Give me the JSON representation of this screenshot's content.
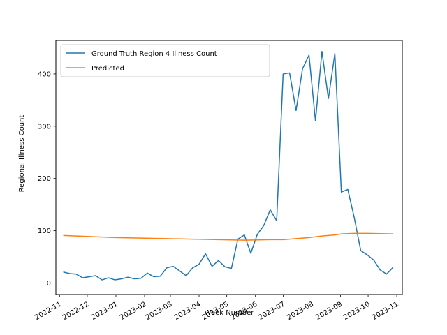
{
  "chart_data": {
    "type": "line",
    "title": "",
    "xlabel": "Week Number",
    "ylabel": "Regional Illness Count",
    "xaxis_type": "date",
    "xlim": [
      "2022-10-28",
      "2023-11-07"
    ],
    "ylim": [
      -22,
      464
    ],
    "x_ticks": [
      "2022-11-01",
      "2022-12-01",
      "2023-01-01",
      "2023-02-01",
      "2023-03-01",
      "2023-04-01",
      "2023-05-01",
      "2023-06-01",
      "2023-07-01",
      "2023-08-01",
      "2023-09-01",
      "2023-10-01",
      "2023-11-01"
    ],
    "x_tick_labels": [
      "2022-11",
      "2022-12",
      "2023-01",
      "2023-02",
      "2023-03",
      "2023-04",
      "2023-05",
      "2023-06",
      "2023-07",
      "2023-08",
      "2023-09",
      "2023-10",
      "2023-11"
    ],
    "y_ticks": [
      0,
      100,
      200,
      300,
      400
    ],
    "y_tick_labels": [
      "0",
      "100",
      "200",
      "300",
      "400"
    ],
    "grid": false,
    "legend_position": "top-left",
    "series": [
      {
        "name": "Ground Truth Region 4 Illness Count",
        "color": "#1f77b4",
        "x": [
          "2022-11-05",
          "2022-11-12",
          "2022-11-19",
          "2022-11-26",
          "2022-12-03",
          "2022-12-10",
          "2022-12-17",
          "2022-12-24",
          "2022-12-31",
          "2023-01-07",
          "2023-01-14",
          "2023-01-21",
          "2023-01-28",
          "2023-02-04",
          "2023-02-11",
          "2023-02-18",
          "2023-02-25",
          "2023-03-04",
          "2023-03-11",
          "2023-03-18",
          "2023-03-25",
          "2023-04-01",
          "2023-04-08",
          "2023-04-15",
          "2023-04-22",
          "2023-04-29",
          "2023-05-06",
          "2023-05-13",
          "2023-05-20",
          "2023-05-27",
          "2023-06-03",
          "2023-06-10",
          "2023-06-17",
          "2023-06-24",
          "2023-07-01",
          "2023-07-08",
          "2023-07-15",
          "2023-07-22",
          "2023-07-29",
          "2023-08-05",
          "2023-08-12",
          "2023-08-19",
          "2023-08-26",
          "2023-09-02",
          "2023-09-09",
          "2023-09-16",
          "2023-09-23",
          "2023-09-30",
          "2023-10-07",
          "2023-10-14",
          "2023-10-21",
          "2023-10-28"
        ],
        "y": [
          21,
          18,
          17,
          10,
          12,
          14,
          6,
          10,
          6,
          8,
          11,
          8,
          9,
          19,
          12,
          13,
          29,
          32,
          23,
          14,
          29,
          36,
          56,
          32,
          43,
          31,
          28,
          84,
          92,
          57,
          93,
          110,
          140,
          119,
          400,
          402,
          330,
          410,
          436,
          310,
          443,
          353,
          439,
          174,
          179,
          125,
          62,
          54,
          44,
          25,
          17,
          30
        ]
      },
      {
        "name": "Predicted",
        "color": "#ff7f0e",
        "x": [
          "2022-11-05",
          "2022-12-03",
          "2022-12-31",
          "2023-01-28",
          "2023-02-25",
          "2023-03-25",
          "2023-04-22",
          "2023-05-20",
          "2023-06-17",
          "2023-07-01",
          "2023-07-15",
          "2023-07-29",
          "2023-08-12",
          "2023-08-26",
          "2023-09-02",
          "2023-09-16",
          "2023-09-30",
          "2023-10-14",
          "2023-10-28"
        ],
        "y": [
          91,
          89,
          87,
          86,
          85,
          84,
          83,
          82,
          83,
          83,
          85,
          87,
          90,
          92,
          94,
          95,
          95,
          94.5,
          94
        ]
      }
    ]
  }
}
